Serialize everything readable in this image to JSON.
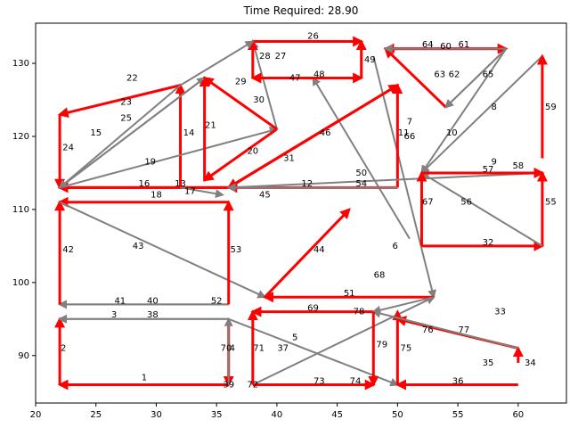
{
  "chart_data": {
    "type": "line",
    "title": "Time Required: 28.90",
    "xlim": [
      20,
      64
    ],
    "ylim": [
      83.5,
      135.5
    ],
    "xticks": [
      20,
      25,
      30,
      35,
      40,
      45,
      50,
      55,
      60
    ],
    "yticks": [
      90,
      100,
      110,
      120,
      130
    ],
    "colors": {
      "red": "#ff0000",
      "gray": "#808080"
    },
    "series": [
      {
        "label": "1",
        "x1": 36,
        "y1": 86,
        "x2": 22,
        "y2": 86,
        "color": "red",
        "lx": 29,
        "ly": 87
      },
      {
        "label": "2",
        "x1": 22,
        "y1": 86,
        "x2": 22,
        "y2": 95,
        "color": "red",
        "lx": 22.3,
        "ly": 91
      },
      {
        "label": "3",
        "x1": 36,
        "y1": 95,
        "x2": 22,
        "y2": 95,
        "color": "gray",
        "lx": 26.5,
        "ly": 95.6
      },
      {
        "label": "4",
        "x1": 36,
        "y1": 95,
        "x2": 36,
        "y2": 86,
        "color": "red",
        "lx": 36.3,
        "ly": 91
      },
      {
        "label": "5",
        "x1": 36,
        "y1": 95,
        "x2": 50,
        "y2": 86,
        "color": "gray",
        "lx": 41.5,
        "ly": 92.5
      },
      {
        "label": "6",
        "x1": 51,
        "y1": 106,
        "x2": 43,
        "y2": 128,
        "color": "gray",
        "lx": 49.8,
        "ly": 105
      },
      {
        "label": "7",
        "x1": 48,
        "y1": 131,
        "x2": 53,
        "y2": 98,
        "color": "gray",
        "lx": 51,
        "ly": 122
      },
      {
        "label": "8",
        "x1": 62,
        "y1": 131,
        "x2": 52,
        "y2": 115,
        "color": "gray",
        "lx": 58,
        "ly": 124
      },
      {
        "label": "9",
        "x1": 52,
        "y1": 115,
        "x2": 62,
        "y2": 115,
        "color": "red",
        "lx": 58,
        "ly": 116.5
      },
      {
        "label": "10",
        "x1": 59,
        "y1": 132,
        "x2": 52,
        "y2": 115,
        "color": "gray",
        "lx": 54.5,
        "ly": 120.5
      },
      {
        "label": "11",
        "x1": 50,
        "y1": 113,
        "x2": 50,
        "y2": 127,
        "color": "red",
        "lx": 50.5,
        "ly": 120.5
      },
      {
        "label": "12",
        "x1": 50,
        "y1": 113,
        "x2": 36,
        "y2": 113,
        "color": "red",
        "lx": 42.5,
        "ly": 113.5
      },
      {
        "label": "13",
        "x1": 36,
        "y1": 113,
        "x2": 22,
        "y2": 113,
        "color": "red",
        "lx": 32,
        "ly": 113.5
      },
      {
        "label": "14",
        "x1": 32,
        "y1": 113,
        "x2": 32,
        "y2": 127,
        "color": "red",
        "lx": 32.7,
        "ly": 120.5
      },
      {
        "label": "15",
        "x1": 22,
        "y1": 113,
        "x2": 34,
        "y2": 128,
        "color": "gray",
        "lx": 25,
        "ly": 120.5
      },
      {
        "label": "16",
        "x1": 36,
        "y1": 113,
        "x2": 22,
        "y2": 113,
        "color": "red",
        "lx": 29,
        "ly": 113.5
      },
      {
        "label": "17",
        "x1": 32,
        "y1": 113,
        "x2": 35.5,
        "y2": 112,
        "color": "gray",
        "lx": 32.8,
        "ly": 112.5
      },
      {
        "label": "18",
        "x1": 36,
        "y1": 111,
        "x2": 22,
        "y2": 111,
        "color": "red",
        "lx": 30,
        "ly": 112
      },
      {
        "label": "19",
        "x1": 22,
        "y1": 113,
        "x2": 40,
        "y2": 121,
        "color": "gray",
        "lx": 29.5,
        "ly": 116.5
      },
      {
        "label": "20",
        "x1": 40,
        "y1": 121,
        "x2": 34,
        "y2": 114,
        "color": "red",
        "lx": 38,
        "ly": 118
      },
      {
        "label": "21",
        "x1": 34,
        "y1": 114,
        "x2": 34,
        "y2": 128,
        "color": "red",
        "lx": 34.5,
        "ly": 121.5
      },
      {
        "label": "22",
        "x1": 34,
        "y1": 128,
        "x2": 22,
        "y2": 113,
        "color": "gray",
        "lx": 28,
        "ly": 128
      },
      {
        "label": "23",
        "x1": 32,
        "y1": 127,
        "x2": 22,
        "y2": 123,
        "color": "red",
        "lx": 27.5,
        "ly": 124.7
      },
      {
        "label": "24",
        "x1": 22,
        "y1": 123,
        "x2": 22,
        "y2": 113,
        "color": "red",
        "lx": 22.7,
        "ly": 118.5
      },
      {
        "label": "25",
        "x1": 32,
        "y1": 127,
        "x2": 22,
        "y2": 113,
        "color": "gray",
        "lx": 27.5,
        "ly": 122.5
      },
      {
        "label": "26",
        "x1": 38,
        "y1": 133,
        "x2": 47,
        "y2": 133,
        "color": "red",
        "lx": 43,
        "ly": 133.7
      },
      {
        "label": "27",
        "x1": 40,
        "y1": 121,
        "x2": 38,
        "y2": 133,
        "color": "gray",
        "lx": 40.3,
        "ly": 131
      },
      {
        "label": "28",
        "x1": 38,
        "y1": 128,
        "x2": 38,
        "y2": 133,
        "color": "red",
        "lx": 39,
        "ly": 131
      },
      {
        "label": "29",
        "x1": 32,
        "y1": 127,
        "x2": 38,
        "y2": 133,
        "color": "gray",
        "lx": 37,
        "ly": 127.5
      },
      {
        "label": "30",
        "x1": 40,
        "y1": 121,
        "x2": 34,
        "y2": 128,
        "color": "red",
        "lx": 38.5,
        "ly": 125
      },
      {
        "label": "31",
        "x1": 50,
        "y1": 127,
        "x2": 36,
        "y2": 113,
        "color": "red",
        "lx": 41,
        "ly": 117
      },
      {
        "label": "32",
        "x1": 52,
        "y1": 105,
        "x2": 62,
        "y2": 105,
        "color": "red",
        "lx": 57.5,
        "ly": 105.5
      },
      {
        "label": "33",
        "x1": 56,
        "y1": 96,
        "x2": 56,
        "y2": 96,
        "color": "gray",
        "lx": 58.5,
        "ly": 96
      },
      {
        "label": "34",
        "x1": 60,
        "y1": 89,
        "x2": 60,
        "y2": 91,
        "color": "red",
        "lx": 61,
        "ly": 89
      },
      {
        "label": "35",
        "x1": 56,
        "y1": 89,
        "x2": 56,
        "y2": 89,
        "color": "gray",
        "lx": 57.5,
        "ly": 89
      },
      {
        "label": "36",
        "x1": 60,
        "y1": 86,
        "x2": 50,
        "y2": 86,
        "color": "red",
        "lx": 55,
        "ly": 86.5
      },
      {
        "label": "37",
        "x1": 38,
        "y1": 86,
        "x2": 53,
        "y2": 98,
        "color": "gray",
        "lx": 40.5,
        "ly": 91
      },
      {
        "label": "38",
        "x1": 36,
        "y1": 95,
        "x2": 22,
        "y2": 95,
        "color": "gray",
        "lx": 29.7,
        "ly": 95.6
      },
      {
        "label": "39",
        "x1": 36,
        "y1": 86,
        "x2": 36,
        "y2": 86,
        "color": "gray",
        "lx": 36,
        "ly": 86
      },
      {
        "label": "40",
        "x1": 36,
        "y1": 97,
        "x2": 22,
        "y2": 97,
        "color": "gray",
        "lx": 29.7,
        "ly": 97.5
      },
      {
        "label": "41",
        "x1": 36,
        "y1": 97,
        "x2": 22,
        "y2": 97,
        "color": "gray",
        "lx": 27,
        "ly": 97.5
      },
      {
        "label": "42",
        "x1": 22,
        "y1": 97,
        "x2": 22,
        "y2": 111,
        "color": "red",
        "lx": 22.7,
        "ly": 104.5
      },
      {
        "label": "43",
        "x1": 22,
        "y1": 111,
        "x2": 39,
        "y2": 98,
        "color": "gray",
        "lx": 28.5,
        "ly": 105
      },
      {
        "label": "44",
        "x1": 39,
        "y1": 98,
        "x2": 46,
        "y2": 110,
        "color": "red",
        "lx": 43.5,
        "ly": 104.5
      },
      {
        "label": "45",
        "x1": 36,
        "y1": 113,
        "x2": 62,
        "y2": 115,
        "color": "gray",
        "lx": 39,
        "ly": 112
      },
      {
        "label": "46",
        "x1": 36,
        "y1": 113,
        "x2": 50,
        "y2": 127,
        "color": "red",
        "lx": 44,
        "ly": 120.5
      },
      {
        "label": "47",
        "x1": 38,
        "y1": 128,
        "x2": 47,
        "y2": 128,
        "color": "red",
        "lx": 41.5,
        "ly": 128
      },
      {
        "label": "48",
        "x1": 47,
        "y1": 128,
        "x2": 38,
        "y2": 128,
        "color": "red",
        "lx": 43.5,
        "ly": 128.5
      },
      {
        "label": "49",
        "x1": 47,
        "y1": 128,
        "x2": 47,
        "y2": 133,
        "color": "red",
        "lx": 47.7,
        "ly": 130.5
      },
      {
        "label": "50",
        "x1": 50,
        "y1": 113,
        "x2": 36,
        "y2": 113,
        "color": "gray",
        "lx": 47,
        "ly": 115
      },
      {
        "label": "51",
        "x1": 53,
        "y1": 98,
        "x2": 39,
        "y2": 98,
        "color": "red",
        "lx": 46,
        "ly": 98.5
      },
      {
        "label": "52",
        "x1": 36,
        "y1": 97,
        "x2": 36,
        "y2": 97,
        "color": "gray",
        "lx": 35,
        "ly": 97.5
      },
      {
        "label": "53",
        "x1": 36,
        "y1": 97,
        "x2": 36,
        "y2": 111,
        "color": "red",
        "lx": 36.6,
        "ly": 104.5
      },
      {
        "label": "54",
        "x1": 50,
        "y1": 113,
        "x2": 36,
        "y2": 113,
        "color": "gray",
        "lx": 47,
        "ly": 113.5
      },
      {
        "label": "55",
        "x1": 62,
        "y1": 105,
        "x2": 62,
        "y2": 115,
        "color": "red",
        "lx": 62.7,
        "ly": 111
      },
      {
        "label": "56",
        "x1": 62,
        "y1": 105,
        "x2": 52,
        "y2": 115,
        "color": "gray",
        "lx": 55.7,
        "ly": 111
      },
      {
        "label": "57",
        "x1": 52,
        "y1": 115,
        "x2": 62,
        "y2": 115,
        "color": "red",
        "lx": 57.5,
        "ly": 115.5
      },
      {
        "label": "58",
        "x1": 62,
        "y1": 117,
        "x2": 62,
        "y2": 117,
        "color": "gray",
        "lx": 60,
        "ly": 116
      },
      {
        "label": "59",
        "x1": 62,
        "y1": 117,
        "x2": 62,
        "y2": 131,
        "color": "red",
        "lx": 62.7,
        "ly": 124
      },
      {
        "label": "60",
        "x1": 49,
        "y1": 132,
        "x2": 59,
        "y2": 132,
        "color": "red",
        "lx": 54,
        "ly": 132.3
      },
      {
        "label": "61",
        "x1": 59,
        "y1": 132,
        "x2": 49,
        "y2": 132,
        "color": "red",
        "lx": 55.5,
        "ly": 132.6
      },
      {
        "label": "62",
        "x1": 59,
        "y1": 132,
        "x2": 54,
        "y2": 124,
        "color": "gray",
        "lx": 54.7,
        "ly": 128.5
      },
      {
        "label": "63",
        "x1": 54,
        "y1": 124,
        "x2": 49,
        "y2": 132,
        "color": "red",
        "lx": 53.5,
        "ly": 128.5
      },
      {
        "label": "64",
        "x1": 59,
        "y1": 132,
        "x2": 49,
        "y2": 132,
        "color": "gray",
        "lx": 52.5,
        "ly": 132.6
      },
      {
        "label": "65",
        "x1": 59,
        "y1": 132,
        "x2": 54,
        "y2": 124,
        "color": "gray",
        "lx": 57.5,
        "ly": 128.5
      },
      {
        "label": "66",
        "x1": 50,
        "y1": 119,
        "x2": 50,
        "y2": 119,
        "color": "gray",
        "lx": 51,
        "ly": 120
      },
      {
        "label": "67",
        "x1": 52,
        "y1": 105,
        "x2": 52,
        "y2": 115,
        "color": "red",
        "lx": 52.5,
        "ly": 111
      },
      {
        "label": "68",
        "x1": 53,
        "y1": 98,
        "x2": 48,
        "y2": 96,
        "color": "gray",
        "lx": 48.5,
        "ly": 101
      },
      {
        "label": "69",
        "x1": 48,
        "y1": 96,
        "x2": 38,
        "y2": 96,
        "color": "red",
        "lx": 43,
        "ly": 96.5
      },
      {
        "label": "70",
        "x1": 36,
        "y1": 86,
        "x2": 36,
        "y2": 95,
        "color": "gray",
        "lx": 35.8,
        "ly": 91
      },
      {
        "label": "71",
        "x1": 38,
        "y1": 86,
        "x2": 38,
        "y2": 96,
        "color": "red",
        "lx": 38.5,
        "ly": 91
      },
      {
        "label": "72",
        "x1": 38,
        "y1": 86,
        "x2": 38,
        "y2": 86,
        "color": "gray",
        "lx": 38,
        "ly": 86
      },
      {
        "label": "73",
        "x1": 38,
        "y1": 86,
        "x2": 48,
        "y2": 86,
        "color": "red",
        "lx": 43.5,
        "ly": 86.5
      },
      {
        "label": "74",
        "x1": 48,
        "y1": 86,
        "x2": 48,
        "y2": 86,
        "color": "red",
        "lx": 46.5,
        "ly": 86.5
      },
      {
        "label": "75",
        "x1": 50,
        "y1": 86,
        "x2": 50,
        "y2": 96,
        "color": "red",
        "lx": 50.7,
        "ly": 91
      },
      {
        "label": "76",
        "x1": 60,
        "y1": 91,
        "x2": 50,
        "y2": 95,
        "color": "red",
        "lx": 52.5,
        "ly": 93.5
      },
      {
        "label": "77",
        "x1": 60,
        "y1": 91,
        "x2": 48,
        "y2": 96,
        "color": "gray",
        "lx": 55.5,
        "ly": 93.5
      },
      {
        "label": "78",
        "x1": 48,
        "y1": 96,
        "x2": 48,
        "y2": 96,
        "color": "red",
        "lx": 46.8,
        "ly": 96
      },
      {
        "label": "79",
        "x1": 48,
        "y1": 96,
        "x2": 48,
        "y2": 86,
        "color": "red",
        "lx": 48.7,
        "ly": 91.5
      }
    ]
  }
}
